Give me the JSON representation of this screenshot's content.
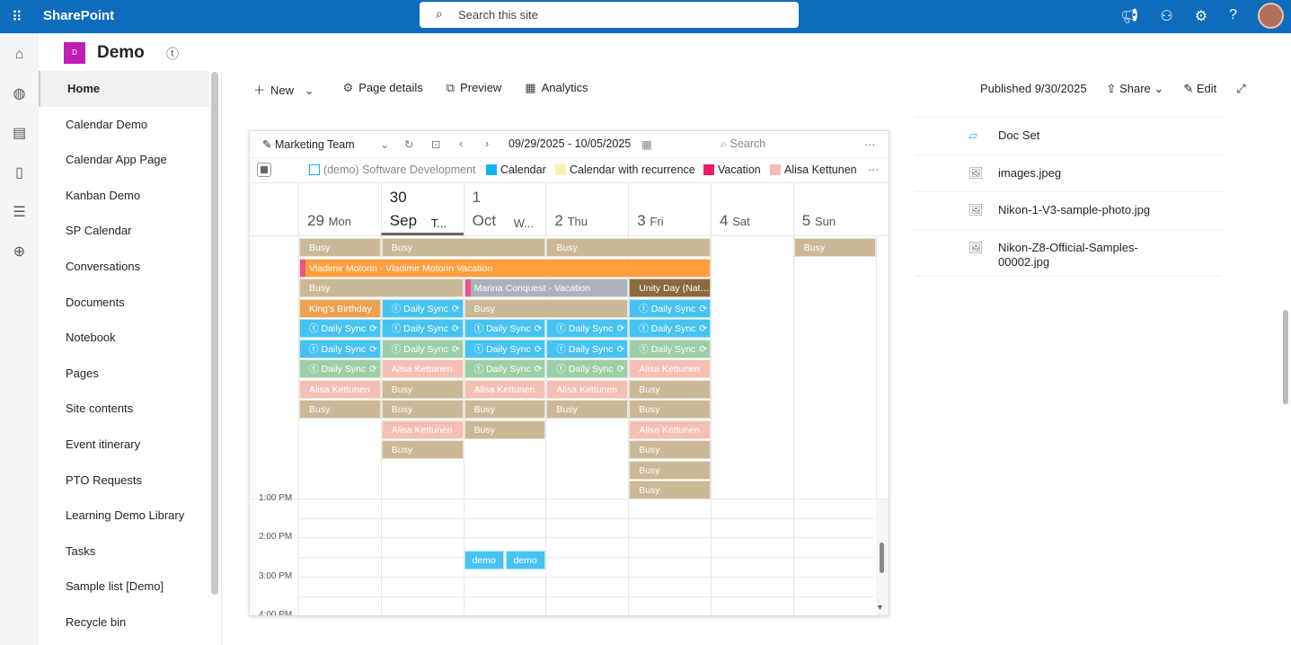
{
  "topbar": {
    "brand": "SharePoint",
    "search_placeholder": "Search this site"
  },
  "site": {
    "logo": "D",
    "name": "Demo"
  },
  "nav": [
    "Home",
    "Calendar Demo",
    "Calendar App Page",
    "Kanban Demo",
    "SP Calendar",
    "Conversations",
    "Documents",
    "Notebook",
    "Pages",
    "Site contents",
    "Event itinerary",
    "PTO Requests",
    "Learning Demo Library",
    "Tasks",
    "Sample list [Demo]",
    "Recycle bin"
  ],
  "commands": {
    "new": "New",
    "page_details": "Page details",
    "preview": "Preview",
    "analytics": "Analytics",
    "published": "Published 9/30/2025",
    "share": "Share",
    "edit": "Edit"
  },
  "calendar": {
    "view_name": "Marketing Team",
    "date_range": "09/29/2025 - 10/05/2025",
    "search_placeholder": "Search",
    "legend": [
      {
        "label": "(demo) Software Development",
        "color": "#ffffff",
        "outline": true
      },
      {
        "label": "Calendar",
        "color": "#10b4ec"
      },
      {
        "label": "Calendar with recurrence",
        "color": "#fdeeb0"
      },
      {
        "label": "Vacation",
        "color": "#ee1c64"
      },
      {
        "label": "Alisa Kettunen",
        "color": "#f4bcb0"
      }
    ],
    "days": [
      {
        "num": "29",
        "name": "Mon"
      },
      {
        "num": "30",
        "month": "Sep",
        "name": "T..."
      },
      {
        "num": "1",
        "month": "Oct",
        "name": "W..."
      },
      {
        "num": "2",
        "name": "Thu"
      },
      {
        "num": "3",
        "name": "Fri"
      },
      {
        "num": "4",
        "name": "Sat"
      },
      {
        "num": "5",
        "name": "Sun"
      }
    ],
    "times": [
      "1:00 PM",
      "2:00 PM",
      "3:00 PM",
      "4:00 PM"
    ],
    "colors": {
      "busy": "#cbb896",
      "vacation": "#ff9f3f",
      "grey": "#a9b3b8",
      "holiday": "#8b6a3e",
      "birthday": "#eba352",
      "blue": "#47c3f1",
      "green": "#9ccfa8",
      "alisa": "#f4c0b4"
    },
    "events": [
      {
        "t": "Busy",
        "k": "busy",
        "d": 0,
        "s": 1,
        "r": 0
      },
      {
        "t": "Busy",
        "k": "busy",
        "d": 1,
        "s": 2,
        "r": 0
      },
      {
        "t": "Busy",
        "k": "busy",
        "d": 3,
        "s": 2,
        "r": 0
      },
      {
        "t": "Busy",
        "k": "busy",
        "d": 6,
        "s": 1,
        "r": 0
      },
      {
        "t": "Vladimir Motorin - Vladimir Motorin Vacation",
        "k": "vacation",
        "d": 0,
        "s": 5,
        "r": 1,
        "bar": true
      },
      {
        "t": "Busy",
        "k": "busy",
        "d": 0,
        "s": 2,
        "r": 2
      },
      {
        "t": "Marina Conquest - Vacation",
        "k": "grey",
        "d": 2,
        "s": 2,
        "r": 2,
        "bar": true
      },
      {
        "t": "Unity Day (National Day)",
        "k": "holiday",
        "d": 4,
        "s": 1,
        "r": 2
      },
      {
        "t": "King's Birthday",
        "k": "birthday",
        "d": 0,
        "s": 1,
        "r": 3
      },
      {
        "t": "Daily Sync",
        "k": "blue",
        "d": 1,
        "s": 1,
        "r": 3,
        "sync": true
      },
      {
        "t": "Busy",
        "k": "busy",
        "d": 2,
        "s": 2,
        "r": 3
      },
      {
        "t": "Daily Sync",
        "k": "blue",
        "d": 4,
        "s": 1,
        "r": 3,
        "sync": true
      },
      {
        "t": "Daily Sync",
        "k": "blue",
        "d": 0,
        "s": 1,
        "r": 4,
        "sync": true
      },
      {
        "t": "Daily Sync",
        "k": "blue",
        "d": 1,
        "s": 1,
        "r": 4,
        "sync": true
      },
      {
        "t": "Daily Sync",
        "k": "blue",
        "d": 2,
        "s": 1,
        "r": 4,
        "sync": true
      },
      {
        "t": "Daily Sync",
        "k": "blue",
        "d": 3,
        "s": 1,
        "r": 4,
        "sync": true
      },
      {
        "t": "Daily Sync",
        "k": "blue",
        "d": 4,
        "s": 1,
        "r": 4,
        "sync": true
      },
      {
        "t": "Daily Sync",
        "k": "blue",
        "d": 0,
        "s": 1,
        "r": 5,
        "sync": true
      },
      {
        "t": "Daily Sync",
        "k": "green",
        "d": 1,
        "s": 1,
        "r": 5,
        "sync": true
      },
      {
        "t": "Daily Sync",
        "k": "blue",
        "d": 2,
        "s": 1,
        "r": 5,
        "sync": true
      },
      {
        "t": "Daily Sync",
        "k": "blue",
        "d": 3,
        "s": 1,
        "r": 5,
        "sync": true
      },
      {
        "t": "Daily Sync",
        "k": "green",
        "d": 4,
        "s": 1,
        "r": 5,
        "sync": true
      },
      {
        "t": "Daily Sync",
        "k": "green",
        "d": 0,
        "s": 1,
        "r": 6,
        "sync": true
      },
      {
        "t": "Alisa Kettunen",
        "k": "alisa",
        "d": 1,
        "s": 1,
        "r": 6
      },
      {
        "t": "Daily Sync",
        "k": "green",
        "d": 2,
        "s": 1,
        "r": 6,
        "sync": true
      },
      {
        "t": "Daily Sync",
        "k": "green",
        "d": 3,
        "s": 1,
        "r": 6,
        "sync": true
      },
      {
        "t": "Alisa Kettunen",
        "k": "alisa",
        "d": 4,
        "s": 1,
        "r": 6
      },
      {
        "t": "Alisa Kettunen",
        "k": "alisa",
        "d": 0,
        "s": 1,
        "r": 7
      },
      {
        "t": "Busy",
        "k": "busy",
        "d": 1,
        "s": 1,
        "r": 7
      },
      {
        "t": "Alisa Kettunen",
        "k": "alisa",
        "d": 2,
        "s": 1,
        "r": 7
      },
      {
        "t": "Alisa Kettunen",
        "k": "alisa",
        "d": 3,
        "s": 1,
        "r": 7
      },
      {
        "t": "Busy",
        "k": "busy",
        "d": 4,
        "s": 1,
        "r": 7
      },
      {
        "t": "Busy",
        "k": "busy",
        "d": 0,
        "s": 1,
        "r": 8
      },
      {
        "t": "Busy",
        "k": "busy",
        "d": 1,
        "s": 1,
        "r": 8
      },
      {
        "t": "Busy",
        "k": "busy",
        "d": 2,
        "s": 1,
        "r": 8
      },
      {
        "t": "Busy",
        "k": "busy",
        "d": 3,
        "s": 1,
        "r": 8
      },
      {
        "t": "Busy",
        "k": "busy",
        "d": 4,
        "s": 1,
        "r": 8
      },
      {
        "t": "Alisa Kettunen",
        "k": "alisa",
        "d": 1,
        "s": 1,
        "r": 9
      },
      {
        "t": "Busy",
        "k": "busy",
        "d": 2,
        "s": 1,
        "r": 9
      },
      {
        "t": "Alisa Kettunen",
        "k": "alisa",
        "d": 4,
        "s": 1,
        "r": 9
      },
      {
        "t": "Busy",
        "k": "busy",
        "d": 1,
        "s": 1,
        "r": 10
      },
      {
        "t": "Busy",
        "k": "busy",
        "d": 4,
        "s": 1,
        "r": 10
      },
      {
        "t": "Busy",
        "k": "busy",
        "d": 4,
        "s": 1,
        "r": 11
      },
      {
        "t": "Busy",
        "k": "busy",
        "d": 4,
        "s": 1,
        "r": 12
      }
    ],
    "timed_events": [
      {
        "t": "demo",
        "d": 2,
        "half": 0,
        "start": "2:30 PM"
      },
      {
        "t": "demo",
        "d": 2,
        "half": 1,
        "start": "2:30 PM"
      }
    ]
  },
  "files": [
    {
      "name": "Doc Set",
      "icon": "docset-icon"
    },
    {
      "name": "images.jpeg",
      "icon": "image-icon"
    },
    {
      "name": "Nikon-1-V3-sample-photo.jpg",
      "icon": "image-icon"
    },
    {
      "name": "Nikon-Z8-Official-Samples-00002.jpg",
      "icon": "image-icon"
    }
  ]
}
